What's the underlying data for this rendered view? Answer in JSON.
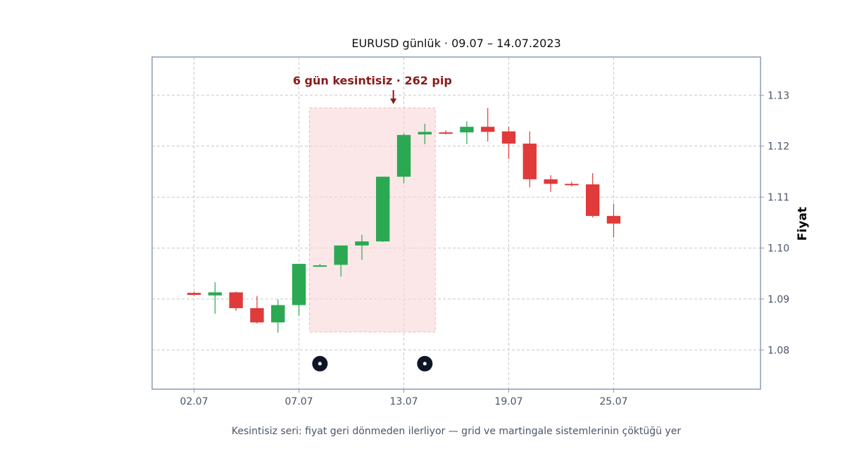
{
  "chart_data": {
    "type": "candlestick",
    "title": "EURUSD günlük · 09.07 – 14.07.2023",
    "ylabel": "Fiyat",
    "xlabel": "",
    "caption": "Kesintisiz seri: fiyat geri dönmeden ilerliyor — grid ve martingale sistemlerinin çöktüğü yer",
    "ylim": [
      1.0723,
      1.1375
    ],
    "yticks": [
      1.08,
      1.09,
      1.1,
      1.11,
      1.12,
      1.13
    ],
    "ytick_labels": [
      "1.08",
      "1.09",
      "1.10",
      "1.11",
      "1.12",
      "1.13"
    ],
    "xlim": [
      0,
      29
    ],
    "xticks": [
      {
        "index": 2,
        "label": "02.07"
      },
      {
        "index": 7,
        "label": "07.07"
      },
      {
        "index": 12,
        "label": "13.07"
      },
      {
        "index": 17,
        "label": "19.07"
      },
      {
        "index": 22,
        "label": "25.07"
      }
    ],
    "grid": true,
    "candles": [
      {
        "index": 2,
        "open": 1.0912,
        "high": 1.0914,
        "low": 1.0906,
        "close": 1.0908
      },
      {
        "index": 3,
        "open": 1.0907,
        "high": 1.0933,
        "low": 1.0871,
        "close": 1.0913
      },
      {
        "index": 4,
        "open": 1.0913,
        "high": 1.0914,
        "low": 1.0877,
        "close": 1.0882
      },
      {
        "index": 5,
        "open": 1.0882,
        "high": 1.0906,
        "low": 1.0852,
        "close": 1.0854
      },
      {
        "index": 6,
        "open": 1.0854,
        "high": 1.0899,
        "low": 1.0834,
        "close": 1.0888
      },
      {
        "index": 7,
        "open": 1.0888,
        "high": 1.0969,
        "low": 1.0867,
        "close": 1.0969
      },
      {
        "index": 8,
        "open": 1.0965,
        "high": 1.0969,
        "low": 1.0964,
        "close": 1.0966
      },
      {
        "index": 9,
        "open": 1.0967,
        "high": 1.1005,
        "low": 1.0944,
        "close": 1.1005
      },
      {
        "index": 10,
        "open": 1.1005,
        "high": 1.1026,
        "low": 1.0977,
        "close": 1.1013
      },
      {
        "index": 11,
        "open": 1.1013,
        "high": 1.114,
        "low": 1.1012,
        "close": 1.114
      },
      {
        "index": 12,
        "open": 1.114,
        "high": 1.1225,
        "low": 1.1127,
        "close": 1.1222
      },
      {
        "index": 13,
        "open": 1.1223,
        "high": 1.1244,
        "low": 1.1204,
        "close": 1.1228
      },
      {
        "index": 14,
        "open": 1.1227,
        "high": 1.1231,
        "low": 1.1223,
        "close": 1.1226
      },
      {
        "index": 15,
        "open": 1.1227,
        "high": 1.1249,
        "low": 1.1204,
        "close": 1.1238
      },
      {
        "index": 16,
        "open": 1.1238,
        "high": 1.1275,
        "low": 1.1209,
        "close": 1.1228
      },
      {
        "index": 17,
        "open": 1.1229,
        "high": 1.1238,
        "low": 1.1175,
        "close": 1.1205
      },
      {
        "index": 18,
        "open": 1.1205,
        "high": 1.1229,
        "low": 1.1119,
        "close": 1.1135
      },
      {
        "index": 19,
        "open": 1.1135,
        "high": 1.1143,
        "low": 1.111,
        "close": 1.1126
      },
      {
        "index": 20,
        "open": 1.1126,
        "high": 1.113,
        "low": 1.1121,
        "close": 1.1124
      },
      {
        "index": 21,
        "open": 1.1125,
        "high": 1.1147,
        "low": 1.106,
        "close": 1.1063
      },
      {
        "index": 22,
        "open": 1.1063,
        "high": 1.1087,
        "low": 1.1021,
        "close": 1.1048
      }
    ],
    "highlight": {
      "from_index": 7.5,
      "to_index": 13.5,
      "y_from": 1.0835,
      "y_to": 1.1275,
      "label": "6 gün kesintisiz · 262 pip",
      "label_color": "#8b1a1a",
      "arrow_index": 11.5,
      "fill": "#f8d7d7"
    },
    "markers": [
      {
        "index": 8,
        "value": 1.0773
      },
      {
        "index": 13,
        "value": 1.0773
      }
    ],
    "colors": {
      "up": "#2aa952",
      "down": "#e03a3a",
      "axis_frame": "#8a9bb5",
      "marker": "#0d1526"
    }
  }
}
